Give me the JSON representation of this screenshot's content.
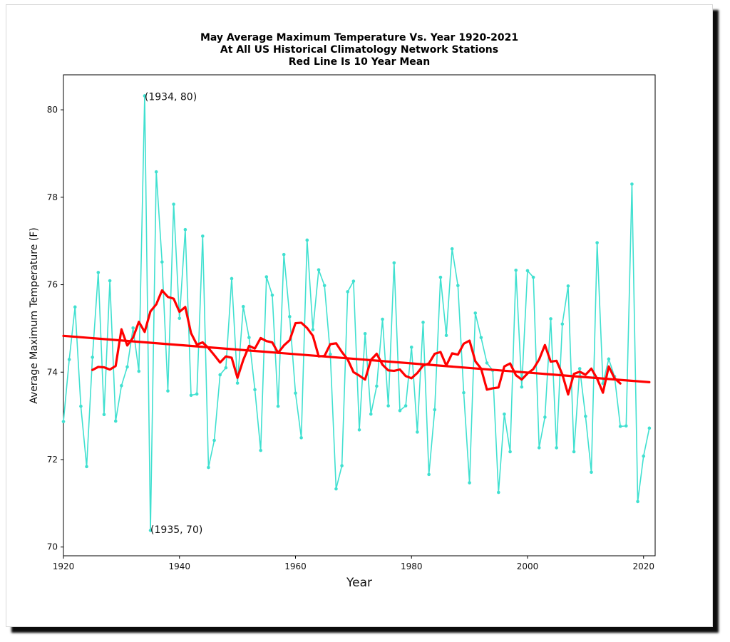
{
  "colors": {
    "series": "#40e0d0",
    "mean": "#ff0000",
    "trend": "#ff0000"
  },
  "chart_data": {
    "type": "line",
    "title": "May Average Maximum Temperature Vs. Year 1920-2021",
    "subtitle": "At All US Historical Climatology Network Stations",
    "note": "Red Line Is 10 Year Mean",
    "xlabel": "Year",
    "ylabel": "Average Maximum Temperature (F)",
    "xlim": [
      1920,
      2022
    ],
    "ylim": [
      69.8,
      80.8
    ],
    "xticks": [
      1920,
      1940,
      1960,
      1980,
      2000,
      2020
    ],
    "yticks": [
      70,
      72,
      74,
      76,
      78,
      80
    ],
    "grid": false,
    "annotations": [
      {
        "text": "(1934, 80)",
        "x": 1934,
        "y": 80.3
      },
      {
        "text": "(1935, 70)",
        "x": 1935,
        "y": 70.4
      }
    ],
    "series": [
      {
        "x": [
          1920,
          1921,
          1922,
          1923,
          1924,
          1925,
          1926,
          1927,
          1928,
          1929,
          1930,
          1931,
          1932,
          1933,
          1934,
          1935,
          1936,
          1937,
          1938,
          1939,
          1940,
          1941,
          1942,
          1943,
          1944,
          1945,
          1946,
          1947,
          1948,
          1949,
          1950,
          1951,
          1952,
          1953,
          1954,
          1955,
          1956,
          1957,
          1958,
          1959,
          1960,
          1961,
          1962,
          1963,
          1964,
          1965,
          1966,
          1967,
          1968,
          1969,
          1970,
          1971,
          1972,
          1973,
          1974,
          1975,
          1976,
          1977,
          1978,
          1979,
          1980,
          1981,
          1982,
          1983,
          1984,
          1985,
          1986,
          1987,
          1988,
          1989,
          1990,
          1991,
          1992,
          1993,
          1994,
          1995,
          1996,
          1997,
          1998,
          1999,
          2000,
          2001,
          2002,
          2003,
          2004,
          2005,
          2006,
          2007,
          2008,
          2009,
          2010,
          2011,
          2012,
          2013,
          2014,
          2015,
          2016,
          2017,
          2018,
          2019,
          2020,
          2021
        ],
        "values": [
          72.87,
          74.29,
          75.49,
          73.22,
          71.84,
          74.34,
          76.28,
          73.03,
          76.09,
          72.88,
          73.69,
          74.12,
          75.01,
          74.02,
          80.32,
          70.38,
          78.58,
          76.52,
          73.57,
          77.84,
          75.23,
          77.26,
          73.47,
          73.5,
          77.11,
          71.82,
          72.44,
          73.94,
          74.1,
          76.14,
          73.75,
          75.5,
          74.79,
          73.6,
          72.21,
          76.18,
          75.76,
          73.22,
          76.69,
          75.27,
          73.52,
          72.5,
          77.02,
          74.97,
          76.34,
          75.98,
          74.41,
          71.33,
          71.86,
          75.84,
          76.08,
          72.68,
          74.88,
          73.04,
          73.68,
          75.21,
          73.23,
          76.5,
          73.12,
          73.23,
          74.57,
          72.63,
          75.14,
          71.66,
          73.14,
          76.17,
          74.84,
          76.82,
          75.98,
          73.53,
          71.47,
          75.35,
          74.79,
          74.21,
          74.04,
          71.25,
          73.04,
          72.18,
          76.33,
          73.66,
          76.32,
          76.17,
          72.27,
          72.97,
          75.22,
          72.27,
          75.1,
          75.97,
          72.18,
          74.08,
          72.99,
          71.71,
          76.96,
          73.74,
          74.3,
          73.9,
          72.76,
          72.77,
          78.3,
          71.04,
          72.08,
          72.72
        ]
      },
      {
        "name": "10 Year Mean",
        "x": [
          1925,
          1926,
          1927,
          1928,
          1929,
          1930,
          1931,
          1932,
          1933,
          1934,
          1935,
          1936,
          1937,
          1938,
          1939,
          1940,
          1941,
          1942,
          1943,
          1944,
          1945,
          1946,
          1947,
          1948,
          1949,
          1950,
          1951,
          1952,
          1953,
          1954,
          1955,
          1956,
          1957,
          1958,
          1959,
          1960,
          1961,
          1962,
          1963,
          1964,
          1965,
          1966,
          1967,
          1968,
          1969,
          1970,
          1971,
          1972,
          1973,
          1974,
          1975,
          1976,
          1977,
          1978,
          1979,
          1980,
          1981,
          1982,
          1983,
          1984,
          1985,
          1986,
          1987,
          1988,
          1989,
          1990,
          1991,
          1992,
          1993,
          1994,
          1995,
          1996,
          1997,
          1998,
          1999,
          2000,
          2001,
          2002,
          2003,
          2004,
          2005,
          2006,
          2007,
          2008,
          2009,
          2010,
          2011,
          2012,
          2013,
          2014,
          2015,
          2016
        ],
        "values": [
          74.05,
          74.12,
          74.11,
          74.06,
          74.14,
          74.98,
          74.61,
          74.79,
          75.15,
          74.92,
          75.39,
          75.55,
          75.87,
          75.72,
          75.68,
          75.38,
          75.49,
          74.89,
          74.63,
          74.68,
          74.55,
          74.39,
          74.22,
          74.36,
          74.33,
          73.87,
          74.28,
          74.6,
          74.54,
          74.78,
          74.71,
          74.68,
          74.44,
          74.61,
          74.73,
          75.12,
          75.13,
          75.01,
          74.83,
          74.36,
          74.37,
          74.64,
          74.66,
          74.46,
          74.29,
          74.0,
          73.92,
          73.83,
          74.28,
          74.42,
          74.17,
          74.04,
          74.03,
          74.06,
          73.91,
          73.86,
          73.98,
          74.15,
          74.2,
          74.42,
          74.46,
          74.15,
          74.43,
          74.4,
          74.65,
          74.72,
          74.25,
          74.08,
          73.6,
          73.63,
          73.65,
          74.13,
          74.2,
          73.93,
          73.83,
          73.97,
          74.07,
          74.29,
          74.62,
          74.24,
          74.26,
          73.95,
          73.49,
          73.96,
          74.01,
          73.94,
          74.08,
          73.85,
          73.53,
          74.13,
          73.86,
          73.74
        ]
      },
      {
        "name": "Trend",
        "x": [
          1920,
          2021
        ],
        "values": [
          74.83,
          73.77
        ]
      }
    ]
  }
}
